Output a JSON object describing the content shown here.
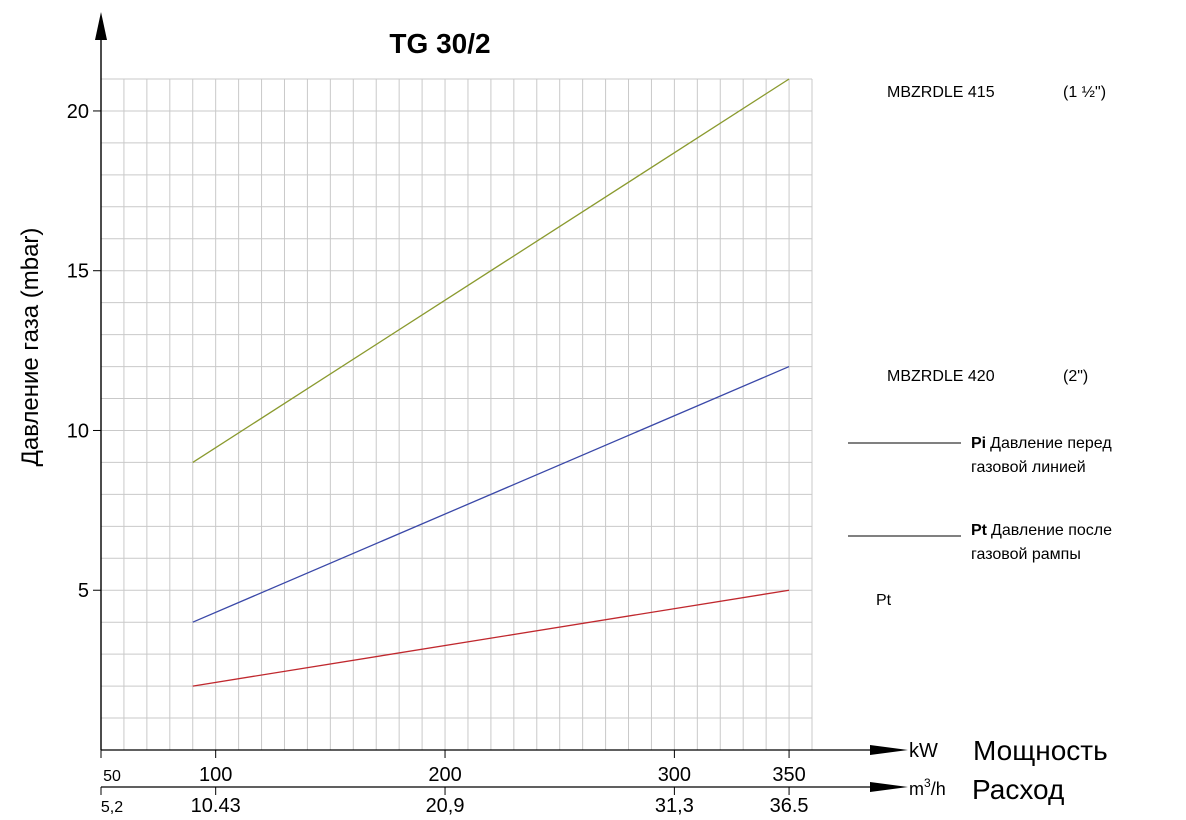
{
  "chart_data": {
    "type": "line",
    "title": "TG 30/2",
    "ylabel": "Давление газа (mbar)",
    "ylim": [
      0,
      21
    ],
    "yticks": [
      5,
      10,
      15,
      20
    ],
    "grid": true,
    "x_axis_kw": {
      "label_unit": "kW",
      "label_name": "Мощность",
      "range": [
        50,
        360
      ],
      "ticks": [
        50,
        100,
        200,
        300,
        350
      ]
    },
    "x_axis_flow": {
      "label_unit": "m",
      "label_unit_sup": "3",
      "label_unit_tail": "/h",
      "label_name": "Расход",
      "tick_labels": [
        "5,2",
        "10.43",
        "20,9",
        "31,3",
        "36.5"
      ]
    },
    "series": [
      {
        "label_main": "MBZRDLE 415",
        "label_size": "(1 ½\")",
        "color": "#8a9a2e",
        "x": [
          90,
          350
        ],
        "y": [
          9,
          21
        ]
      },
      {
        "label_main": "MBZRDLE 420",
        "label_size": "(2\")",
        "color": "#3a48a8",
        "x": [
          90,
          350
        ],
        "y": [
          4,
          12
        ]
      },
      {
        "label_main": "Pt",
        "label_size": "",
        "color": "#c0282e",
        "x": [
          90,
          350
        ],
        "y": [
          2,
          5
        ]
      }
    ],
    "legend": [
      {
        "key": "Pi",
        "line1": "Давление перед",
        "line2": "газовой линией"
      },
      {
        "key": "Pt",
        "line1": "Давление после",
        "line2": "газовой рампы"
      }
    ]
  }
}
